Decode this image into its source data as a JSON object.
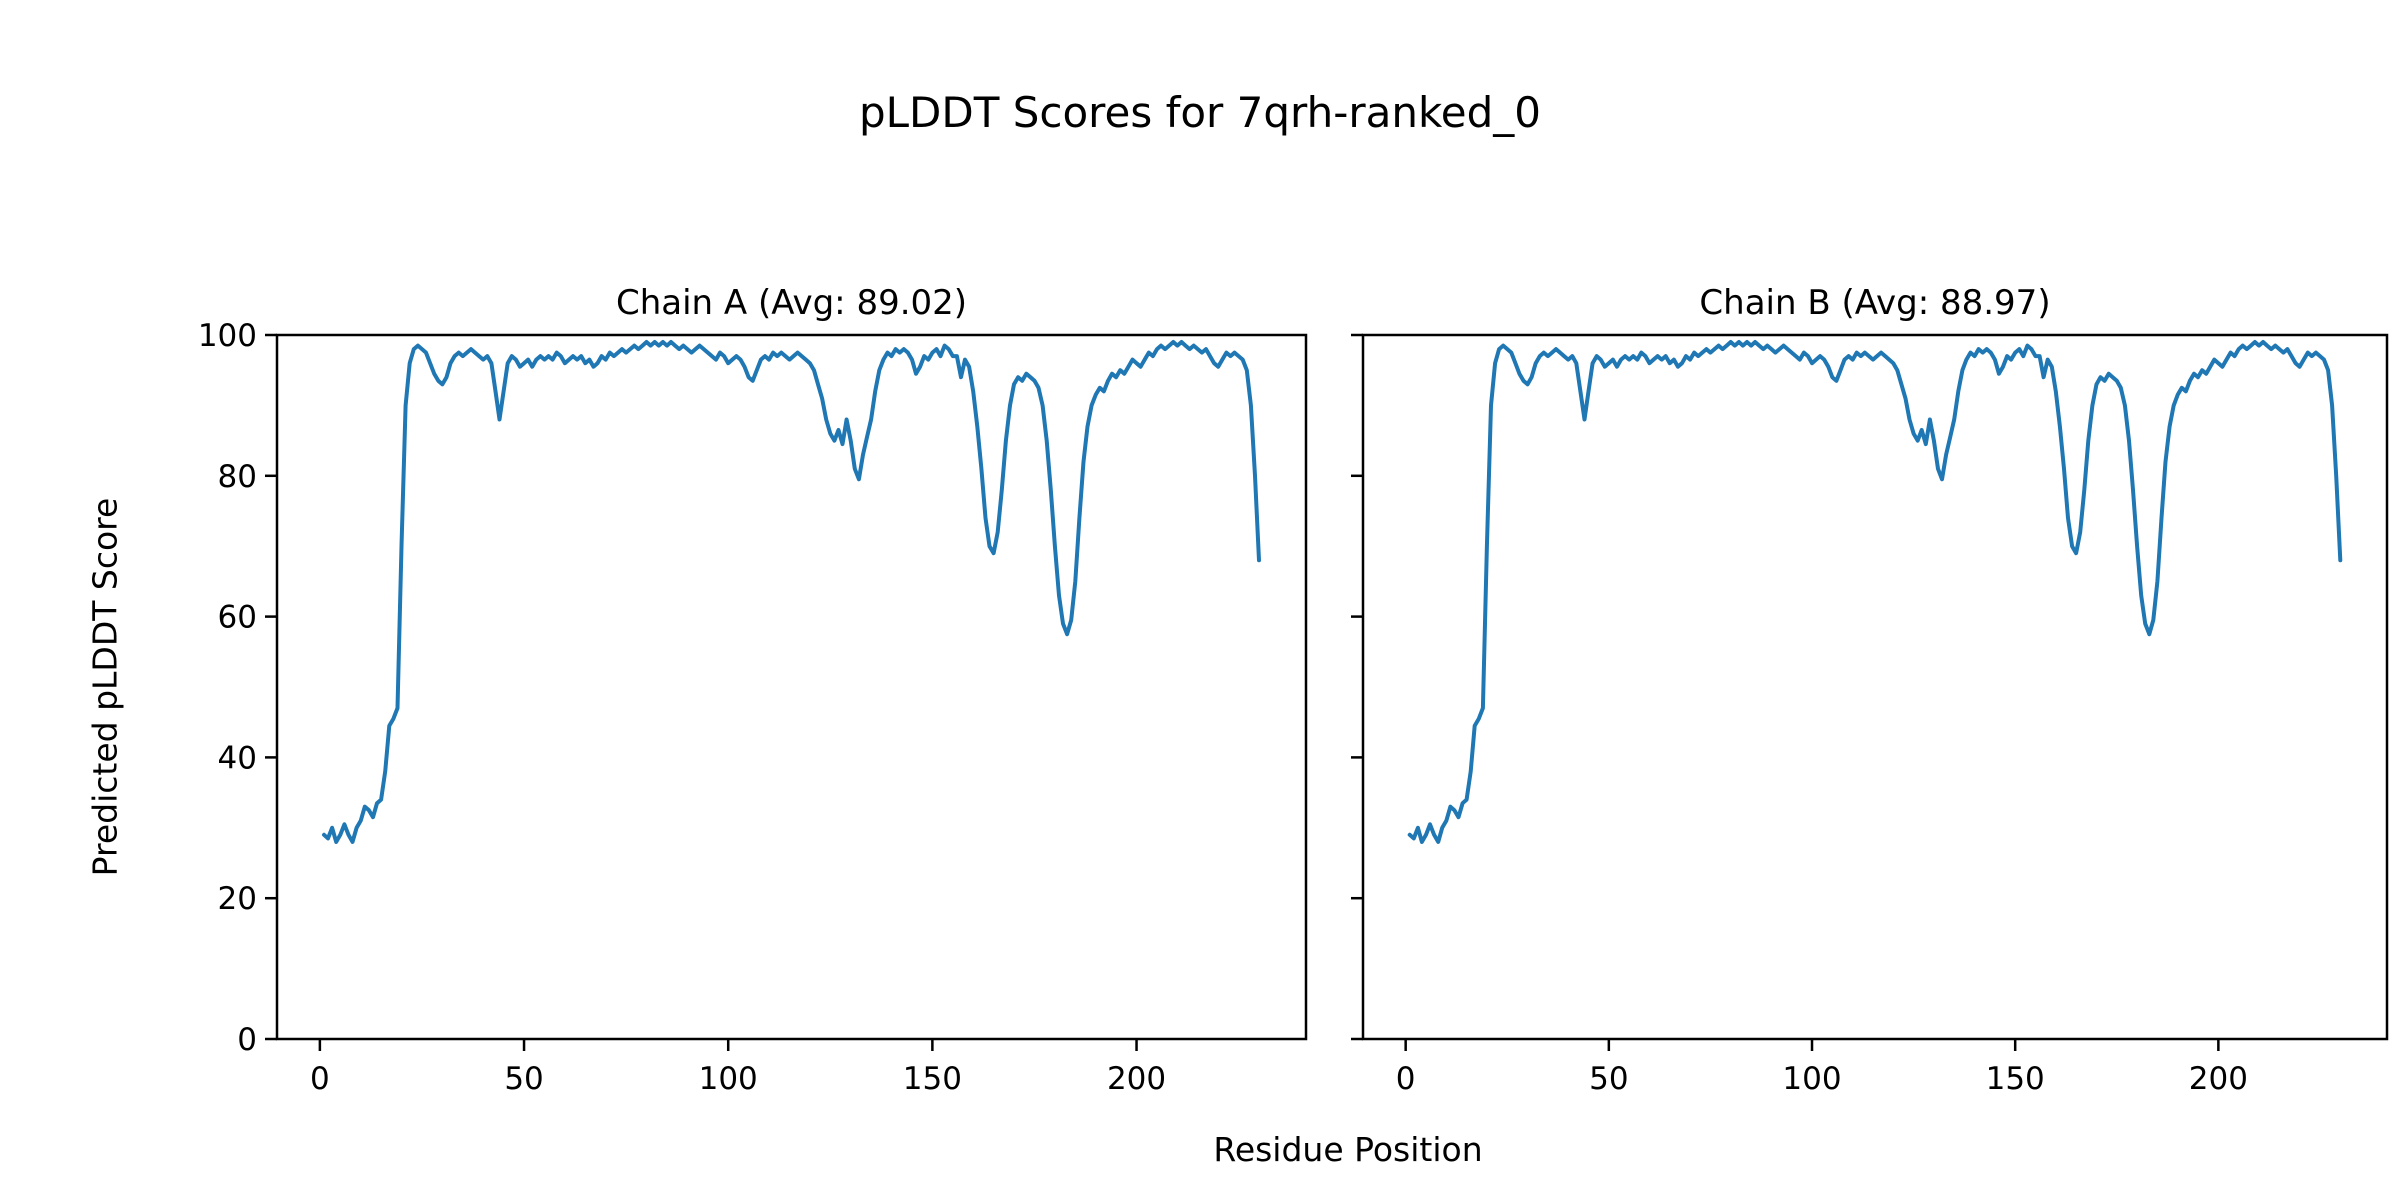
{
  "chart_data": {
    "type": "line",
    "title": "pLDDT Scores for 7qrh-ranked_0",
    "xlabel": "Residue Position",
    "ylabel": "Predicted pLDDT Score",
    "xlim": [
      -10.5,
      241.5
    ],
    "ylim": [
      0,
      100
    ],
    "xticks": [
      0,
      50,
      100,
      150,
      200
    ],
    "yticks": [
      0,
      20,
      40,
      60,
      80,
      100
    ],
    "line_color": "#1f77b4",
    "x_start": 1,
    "grid": false,
    "legend": "none",
    "panels": [
      {
        "name": "Chain A",
        "title": "Chain A (Avg: 89.02)",
        "avg": 89.02,
        "show_ytick_labels": true,
        "values": [
          29,
          28.5,
          30,
          28,
          29,
          30.5,
          29,
          28,
          30,
          31,
          33,
          32.5,
          31.5,
          33.5,
          34,
          38,
          44.5,
          45.5,
          47,
          70,
          90,
          96,
          98,
          98.5,
          98,
          97.5,
          96,
          94.5,
          93.5,
          93,
          94,
          96,
          97,
          97.5,
          97,
          97.5,
          98,
          97.5,
          97,
          96.5,
          97,
          96,
          92,
          88,
          92,
          96,
          97,
          96.5,
          95.5,
          96,
          96.5,
          95.5,
          96.5,
          97,
          96.5,
          97,
          96.5,
          97.5,
          97,
          96,
          96.5,
          97,
          96.5,
          97,
          96,
          96.5,
          95.5,
          96,
          97,
          96.5,
          97.5,
          97,
          97.5,
          98,
          97.5,
          98,
          98.5,
          98,
          98.5,
          99,
          98.5,
          99,
          98.5,
          99,
          98.5,
          99,
          98.5,
          98,
          98.5,
          98,
          97.5,
          98,
          98.5,
          98,
          97.5,
          97,
          96.5,
          97.5,
          97,
          96,
          96.5,
          97,
          96.5,
          95.5,
          94,
          93.5,
          95,
          96.5,
          97,
          96.5,
          97.5,
          97,
          97.5,
          97,
          96.5,
          97,
          97.5,
          97,
          96.5,
          96,
          95,
          93,
          91,
          88,
          86,
          85,
          86.5,
          84.5,
          88,
          85,
          81,
          79.5,
          83,
          85.5,
          88,
          92,
          95,
          96.5,
          97.5,
          97,
          98,
          97.5,
          98,
          97.5,
          96.5,
          94.5,
          95.5,
          97,
          96.5,
          97.5,
          98,
          97,
          98.5,
          98,
          97,
          97,
          94,
          96.5,
          95.5,
          92,
          87,
          81,
          74,
          70,
          69,
          72,
          78,
          85,
          90,
          93,
          94,
          93.5,
          94.5,
          94,
          93.5,
          92.5,
          90,
          85,
          78,
          70,
          63,
          59,
          57.5,
          59.5,
          65,
          74,
          82,
          87,
          90,
          91.5,
          92.5,
          92,
          93.5,
          94.5,
          94,
          95,
          94.5,
          95.5,
          96.5,
          96,
          95.5,
          96.5,
          97.5,
          97,
          98,
          98.5,
          98,
          98.5,
          99,
          98.5,
          99,
          98.5,
          98,
          98.5,
          98,
          97.5,
          98,
          97,
          96,
          95.5,
          96.5,
          97.5,
          97,
          97.5,
          97,
          96.5,
          95,
          90,
          80,
          68
        ]
      },
      {
        "name": "Chain B",
        "title": "Chain B (Avg: 88.97)",
        "avg": 88.97,
        "show_ytick_labels": false,
        "values": [
          29,
          28.5,
          30,
          28,
          29,
          30.5,
          29,
          28,
          30,
          31,
          33,
          32.5,
          31.5,
          33.5,
          34,
          38,
          44.5,
          45.5,
          47,
          70,
          90,
          96,
          98,
          98.5,
          98,
          97.5,
          96,
          94.5,
          93.5,
          93,
          94,
          96,
          97,
          97.5,
          97,
          97.5,
          98,
          97.5,
          97,
          96.5,
          97,
          96,
          92,
          88,
          92,
          96,
          97,
          96.5,
          95.5,
          96,
          96.5,
          95.5,
          96.5,
          97,
          96.5,
          97,
          96.5,
          97.5,
          97,
          96,
          96.5,
          97,
          96.5,
          97,
          96,
          96.5,
          95.5,
          96,
          97,
          96.5,
          97.5,
          97,
          97.5,
          98,
          97.5,
          98,
          98.5,
          98,
          98.5,
          99,
          98.5,
          99,
          98.5,
          99,
          98.5,
          99,
          98.5,
          98,
          98.5,
          98,
          97.5,
          98,
          98.5,
          98,
          97.5,
          97,
          96.5,
          97.5,
          97,
          96,
          96.5,
          97,
          96.5,
          95.5,
          94,
          93.5,
          95,
          96.5,
          97,
          96.5,
          97.5,
          97,
          97.5,
          97,
          96.5,
          97,
          97.5,
          97,
          96.5,
          96,
          95,
          93,
          91,
          88,
          86,
          85,
          86.5,
          84.5,
          88,
          85,
          81,
          79.5,
          83,
          85.5,
          88,
          92,
          95,
          96.5,
          97.5,
          97,
          98,
          97.5,
          98,
          97.5,
          96.5,
          94.5,
          95.5,
          97,
          96.5,
          97.5,
          98,
          97,
          98.5,
          98,
          97,
          97,
          94,
          96.5,
          95.5,
          92,
          87,
          81,
          74,
          70,
          69,
          72,
          78,
          85,
          90,
          93,
          94,
          93.5,
          94.5,
          94,
          93.5,
          92.5,
          90,
          85,
          78,
          70,
          63,
          59,
          57.5,
          59.5,
          65,
          74,
          82,
          87,
          90,
          91.5,
          92.5,
          92,
          93.5,
          94.5,
          94,
          95,
          94.5,
          95.5,
          96.5,
          96,
          95.5,
          96.5,
          97.5,
          97,
          98,
          98.5,
          98,
          98.5,
          99,
          98.5,
          99,
          98.5,
          98,
          98.5,
          98,
          97.5,
          98,
          97,
          96,
          95.5,
          96.5,
          97.5,
          97,
          97.5,
          97,
          96.5,
          95,
          90,
          80,
          68
        ]
      }
    ]
  }
}
